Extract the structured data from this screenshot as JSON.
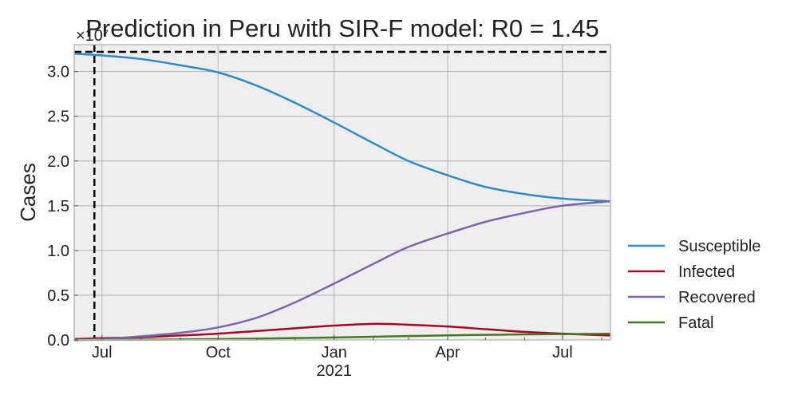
{
  "chart_data": {
    "type": "line",
    "title": "Prediction in Peru with SIR-F model: R0 = 1.45",
    "xlabel": "",
    "ylabel": "Cases",
    "y_offset_label": "×10⁷",
    "y_unit": 10000000,
    "x_axis": {
      "type": "date",
      "range": [
        "2020-06-09",
        "2021-08-08"
      ],
      "ticks": [
        {
          "date": "2020-07-01",
          "label": "Jul",
          "sublabel": ""
        },
        {
          "date": "2020-10-01",
          "label": "Oct",
          "sublabel": ""
        },
        {
          "date": "2021-01-01",
          "label": "Jan",
          "sublabel": "2021"
        },
        {
          "date": "2021-04-01",
          "label": "Apr",
          "sublabel": ""
        },
        {
          "date": "2021-07-01",
          "label": "Jul",
          "sublabel": ""
        }
      ],
      "minor_ticks": [
        "2020-08-01",
        "2020-09-01",
        "2020-11-01",
        "2020-12-01",
        "2021-02-01",
        "2021-03-01",
        "2021-05-01",
        "2021-06-01",
        "2021-08-01"
      ]
    },
    "ylim": [
      0,
      3.3
    ],
    "yticks": [
      0.0,
      0.5,
      1.0,
      1.5,
      2.0,
      2.5,
      3.0
    ],
    "ytick_labels": [
      "0.0",
      "0.5",
      "1.0",
      "1.5",
      "2.0",
      "2.5",
      "3.0"
    ],
    "grid": true,
    "legend_placement": "outside-right",
    "reference_lines": {
      "vertical_date": "2020-06-25",
      "horizontal_value": 3.22
    },
    "series": [
      {
        "name": "Susceptible",
        "color": "#348abd",
        "points": [
          [
            "2020-06-09",
            3.2
          ],
          [
            "2020-07-01",
            3.18
          ],
          [
            "2020-08-01",
            3.14
          ],
          [
            "2020-09-01",
            3.07
          ],
          [
            "2020-10-01",
            2.99
          ],
          [
            "2020-11-01",
            2.84
          ],
          [
            "2020-12-01",
            2.65
          ],
          [
            "2021-01-01",
            2.43
          ],
          [
            "2021-02-01",
            2.2
          ],
          [
            "2021-03-01",
            2.0
          ],
          [
            "2021-04-01",
            1.84
          ],
          [
            "2021-05-01",
            1.71
          ],
          [
            "2021-06-01",
            1.63
          ],
          [
            "2021-07-01",
            1.58
          ],
          [
            "2021-08-08",
            1.55
          ]
        ]
      },
      {
        "name": "Infected",
        "color": "#a60628",
        "points": [
          [
            "2020-06-09",
            0.01
          ],
          [
            "2020-07-01",
            0.02
          ],
          [
            "2020-08-01",
            0.03
          ],
          [
            "2020-09-01",
            0.05
          ],
          [
            "2020-10-01",
            0.07
          ],
          [
            "2020-11-01",
            0.1
          ],
          [
            "2020-12-01",
            0.13
          ],
          [
            "2021-01-01",
            0.16
          ],
          [
            "2021-02-01",
            0.18
          ],
          [
            "2021-03-01",
            0.17
          ],
          [
            "2021-04-01",
            0.15
          ],
          [
            "2021-05-01",
            0.12
          ],
          [
            "2021-06-01",
            0.09
          ],
          [
            "2021-07-01",
            0.07
          ],
          [
            "2021-08-08",
            0.05
          ]
        ]
      },
      {
        "name": "Recovered",
        "color": "#7a68a6",
        "points": [
          [
            "2020-06-09",
            0.0
          ],
          [
            "2020-07-01",
            0.01
          ],
          [
            "2020-08-01",
            0.04
          ],
          [
            "2020-09-01",
            0.08
          ],
          [
            "2020-10-01",
            0.14
          ],
          [
            "2020-11-01",
            0.25
          ],
          [
            "2020-12-01",
            0.42
          ],
          [
            "2021-01-01",
            0.63
          ],
          [
            "2021-02-01",
            0.85
          ],
          [
            "2021-03-01",
            1.04
          ],
          [
            "2021-04-01",
            1.19
          ],
          [
            "2021-05-01",
            1.32
          ],
          [
            "2021-06-01",
            1.42
          ],
          [
            "2021-07-01",
            1.5
          ],
          [
            "2021-08-08",
            1.55
          ]
        ]
      },
      {
        "name": "Fatal",
        "color": "#467821",
        "points": [
          [
            "2020-06-09",
            0.0
          ],
          [
            "2020-07-01",
            0.001
          ],
          [
            "2020-08-01",
            0.003
          ],
          [
            "2020-09-01",
            0.006
          ],
          [
            "2020-10-01",
            0.01
          ],
          [
            "2020-11-01",
            0.015
          ],
          [
            "2020-12-01",
            0.021
          ],
          [
            "2021-01-01",
            0.028
          ],
          [
            "2021-02-01",
            0.036
          ],
          [
            "2021-03-01",
            0.044
          ],
          [
            "2021-04-01",
            0.051
          ],
          [
            "2021-05-01",
            0.057
          ],
          [
            "2021-06-01",
            0.062
          ],
          [
            "2021-07-01",
            0.066
          ],
          [
            "2021-08-08",
            0.069
          ]
        ]
      }
    ]
  }
}
